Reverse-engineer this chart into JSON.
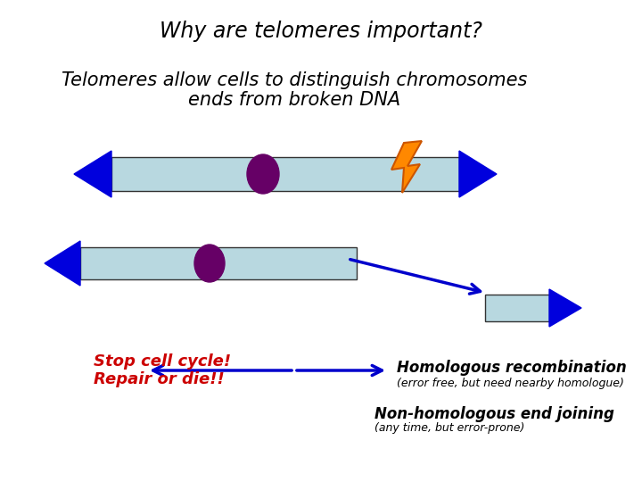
{
  "title": "Why are telomeres important?",
  "subtitle1": "Telomeres allow cells to distinguish chromosomes",
  "subtitle2": "ends from broken DNA",
  "bg_color": "#ffffff",
  "title_fontsize": 17,
  "subtitle_fontsize": 15,
  "chrom_color": "#b8d8e0",
  "telomere_color": "#0000dd",
  "centromere_color": "#660066",
  "arrow_color": "#0000cc",
  "lightning_color": "#ff8800",
  "lightning_edge": "#cc5500",
  "stop_text1": "Stop cell cycle!",
  "stop_text2": "Repair or die!!",
  "stop_color": "#cc0000",
  "homo_text": "Homologous recombination",
  "homo_sub": "(error free, but need nearby homologue)",
  "nonhomo_text": "Non-homologous end joining",
  "nonhomo_sub": "(any time, but error-prone)"
}
